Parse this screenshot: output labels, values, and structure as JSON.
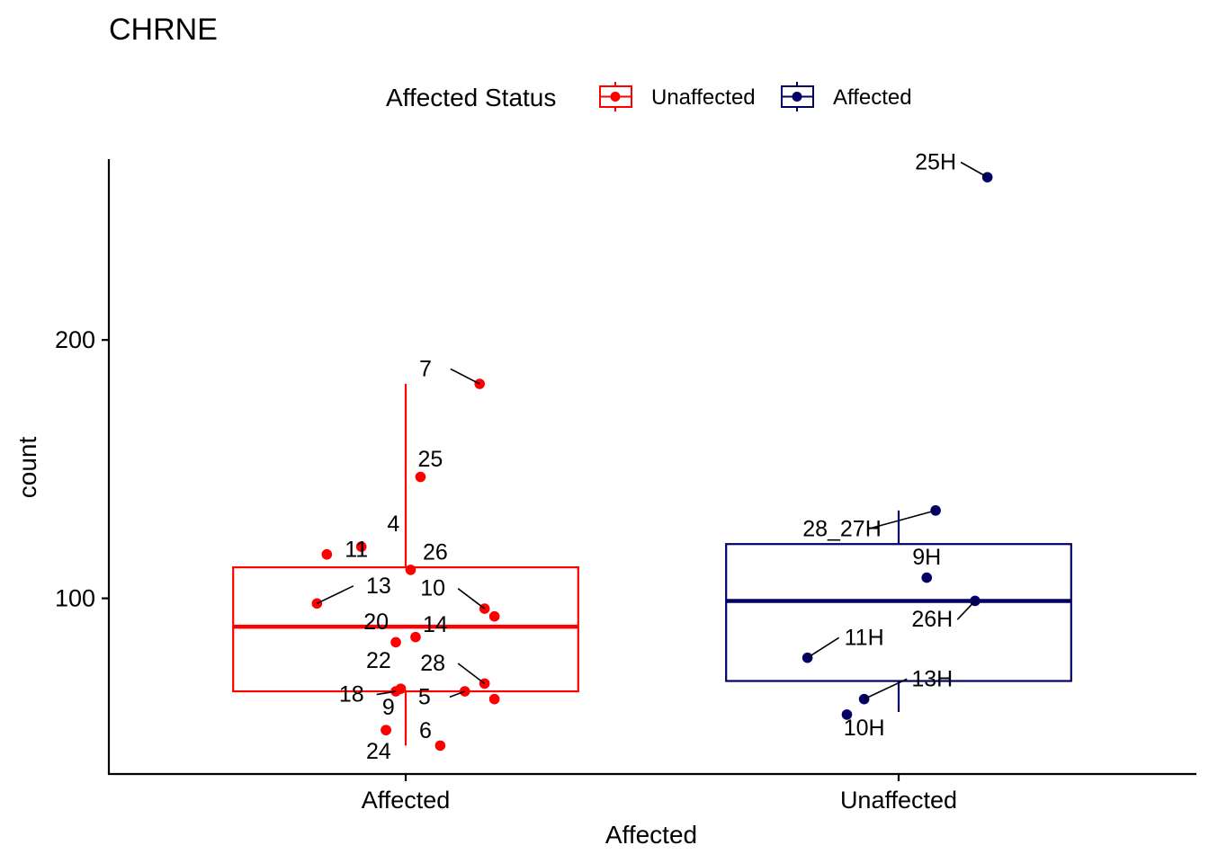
{
  "chart_data": {
    "type": "box",
    "title": "CHRNE",
    "xlabel": "Affected",
    "ylabel": "count",
    "categories": [
      "Affected",
      "Unaffected"
    ],
    "ylim": [
      32,
      270
    ],
    "y_ticks": [
      100,
      200
    ],
    "y_tick_labels": [
      "100",
      "200"
    ],
    "grid": false,
    "legend": {
      "title": "Affected Status",
      "position": "top",
      "entries": [
        {
          "label": "Unaffected",
          "color": "#ff0000"
        },
        {
          "label": "Affected",
          "color": "#000066"
        }
      ]
    },
    "series": [
      {
        "name": "Unaffected",
        "category": "Affected",
        "color": "#ff0000",
        "box": {
          "whisker_low": 43,
          "q1": 64,
          "median": 89,
          "q3": 112,
          "whisker_high": 183
        },
        "points": [
          {
            "label": "7",
            "x": 0.15,
            "y": 183,
            "lx": 0.04,
            "ly": 186
          },
          {
            "label": "25",
            "x": 0.03,
            "y": 147,
            "lx": 0.05,
            "ly": 151
          },
          {
            "label": "4",
            "x": -0.09,
            "y": 120,
            "lx": -0.025,
            "ly": 126
          },
          {
            "label": "11",
            "x": -0.16,
            "y": 117,
            "lx": -0.1,
            "ly": 116
          },
          {
            "label": "26",
            "x": 0.01,
            "y": 111,
            "lx": 0.06,
            "ly": 115
          },
          {
            "label": "13",
            "x": -0.18,
            "y": 98,
            "lx": -0.055,
            "ly": 102
          },
          {
            "label": "10",
            "x": 0.16,
            "y": 96,
            "lx": 0.055,
            "ly": 101
          },
          {
            "label": "",
            "x": 0.18,
            "y": 93,
            "lx": 0,
            "ly": 0
          },
          {
            "label": "20",
            "x": -0.02,
            "y": 83,
            "lx": -0.06,
            "ly": 88
          },
          {
            "label": "14",
            "x": 0.02,
            "y": 85,
            "lx": 0.06,
            "ly": 87
          },
          {
            "label": "22",
            "x": -0.01,
            "y": 65,
            "lx": -0.055,
            "ly": 73
          },
          {
            "label": "28",
            "x": 0.16,
            "y": 67,
            "lx": 0.055,
            "ly": 72
          },
          {
            "label": "18",
            "x": -0.02,
            "y": 64,
            "lx": -0.11,
            "ly": 60
          },
          {
            "label": "5",
            "x": 0.12,
            "y": 64,
            "lx": 0.038,
            "ly": 59
          },
          {
            "label": "",
            "x": 0.18,
            "y": 61,
            "lx": 0,
            "ly": 0
          },
          {
            "label": "9",
            "x": -0.04,
            "y": 49,
            "lx": -0.035,
            "ly": 55
          },
          {
            "label": "6",
            "x": 0.07,
            "y": 43,
            "lx": 0.04,
            "ly": 46
          },
          {
            "label": "24",
            "x": -0.04,
            "y": 49,
            "lx": -0.055,
            "ly": 38
          }
        ]
      },
      {
        "name": "Affected",
        "category": "Unaffected",
        "color": "#000066",
        "box": {
          "whisker_low": 56,
          "q1": 68,
          "median": 99,
          "q3": 121,
          "whisker_high": 134
        },
        "points": [
          {
            "label": "25H",
            "x": 0.18,
            "y": 263,
            "lx": 0.075,
            "ly": 266
          },
          {
            "label": "28_27H",
            "x": 0.075,
            "y": 134,
            "lx": -0.115,
            "ly": 124
          },
          {
            "label": "9H",
            "x": 0.057,
            "y": 108,
            "lx": 0.057,
            "ly": 113
          },
          {
            "label": "26H",
            "x": 0.155,
            "y": 99,
            "lx": 0.068,
            "ly": 89
          },
          {
            "label": "11H",
            "x": -0.185,
            "y": 77,
            "lx": -0.07,
            "ly": 82
          },
          {
            "label": "13H",
            "x": -0.07,
            "y": 61,
            "lx": 0.068,
            "ly": 66
          },
          {
            "label": "10H",
            "x": -0.105,
            "y": 55,
            "lx": -0.07,
            "ly": 47
          }
        ]
      }
    ]
  }
}
